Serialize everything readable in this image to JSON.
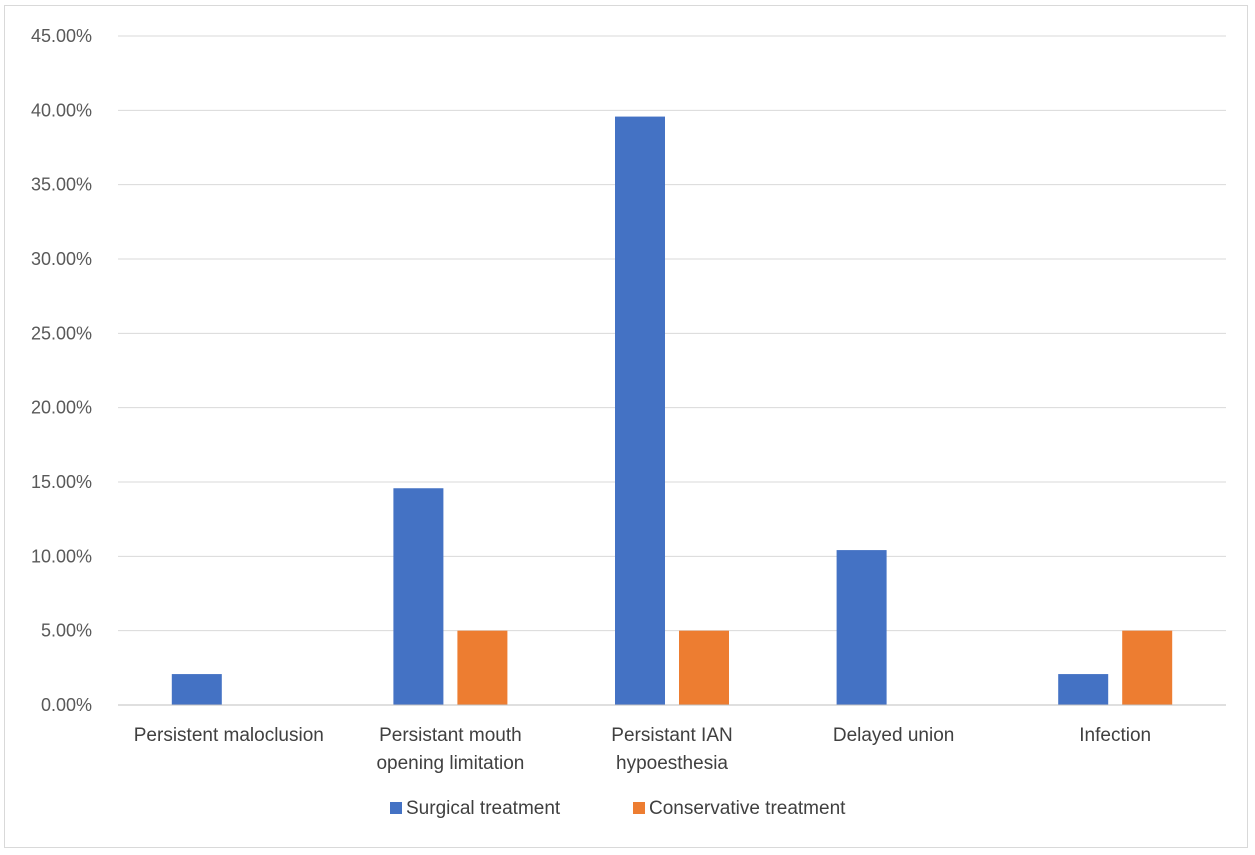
{
  "chart_data": {
    "type": "bar",
    "categories": [
      [
        "Persistent maloclusion"
      ],
      [
        "Persistant mouth",
        "opening limitation"
      ],
      [
        "Persistant IAN",
        "hypoesthesia"
      ],
      [
        "Delayed union"
      ],
      [
        "Infection"
      ]
    ],
    "series": [
      {
        "name": "Surgical treatment",
        "color": "#4472C4",
        "values": [
          2.08,
          14.58,
          39.58,
          10.42,
          2.08
        ]
      },
      {
        "name": "Conservative treatment",
        "color": "#ED7D31",
        "values": [
          0,
          5.0,
          5.0,
          0,
          5.0
        ]
      }
    ],
    "ylim": [
      0,
      45
    ],
    "ytick_step": 5,
    "ytick_labels": [
      "0.00%",
      "5.00%",
      "10.00%",
      "15.00%",
      "20.00%",
      "25.00%",
      "30.00%",
      "35.00%",
      "40.00%",
      "45.00%"
    ],
    "grid": true,
    "gridline_color": "#d9d9d9",
    "legend_position": "bottom"
  }
}
